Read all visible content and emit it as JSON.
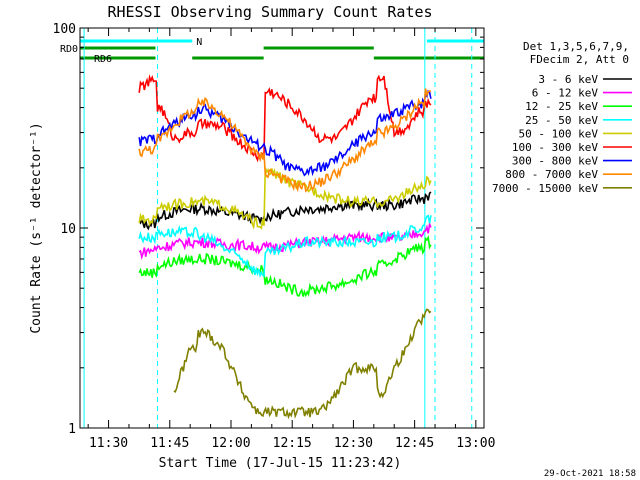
{
  "chart_data": {
    "type": "line",
    "title": "RHESSI Observing Summary Count Rates",
    "xlabel": "Start Time (17-Jul-15 11:23:42)",
    "ylabel": "Count Rate (s⁻¹ detector⁻¹)",
    "y_scale": "log",
    "ylim": [
      1,
      100
    ],
    "xlim_minutes_since_1130": [
      -7,
      92
    ],
    "x_ticks": [
      "11:30",
      "11:45",
      "12:00",
      "12:15",
      "12:30",
      "12:45",
      "13:00"
    ],
    "x_tick_minutes": [
      0,
      15,
      30,
      45,
      60,
      75,
      90
    ],
    "y_ticks": [
      "1",
      "10",
      "100"
    ],
    "y_tick_values": [
      1,
      10,
      100
    ],
    "grid": false,
    "legend_position": "top-right",
    "legend_header": [
      "Det 1,3,5,6,7,9,",
      "FDecim 2, Att 0"
    ],
    "timestamp": "29-Oct-2021 18:58",
    "flags": [
      {
        "label": "N",
        "color": "#00ffff",
        "segments": [
          [
            -7,
            20.5
          ],
          [
            78,
            92
          ]
        ]
      },
      {
        "label": "RD0",
        "color": "#009900",
        "segments": [
          [
            -7,
            11.5
          ],
          [
            38,
            65
          ]
        ]
      },
      {
        "label": "RD6",
        "color": "#009900",
        "segments": [
          [
            -7,
            11.5
          ],
          [
            20.5,
            38
          ],
          [
            65,
            92
          ]
        ]
      }
    ],
    "vlines": [
      {
        "x": -6,
        "color": "#00ffff",
        "dashed": false
      },
      {
        "x": 12,
        "color": "#00ffff",
        "dashed": true
      },
      {
        "x": 77.5,
        "color": "#00ffff",
        "dashed": false
      },
      {
        "x": 80,
        "color": "#00ffff",
        "dashed": true
      },
      {
        "x": 89,
        "color": "#00ffff",
        "dashed": true
      }
    ],
    "series": [
      {
        "name": "3 - 6 keV",
        "color": "#000000",
        "x": [
          7.5,
          11,
          13,
          16,
          20,
          24,
          28,
          33,
          36.5,
          40,
          44,
          48,
          52,
          56,
          60,
          64,
          67.5,
          70,
          73,
          76,
          79
        ],
        "y": [
          10.5,
          10.5,
          11.5,
          12,
          12.5,
          12.5,
          12,
          11.5,
          11,
          11.5,
          12,
          12.5,
          12.5,
          13,
          13,
          13,
          13,
          13,
          13.5,
          14,
          14.5
        ]
      },
      {
        "name": "6 - 12 keV",
        "color": "#ff00ff",
        "x": [
          7.5,
          11,
          13,
          16,
          20,
          24,
          28,
          33,
          36.5,
          40,
          44,
          48,
          52,
          56,
          60,
          64,
          67.5,
          70,
          73,
          76,
          79
        ],
        "y": [
          7.5,
          7.8,
          8,
          8.3,
          8.5,
          8.5,
          8.3,
          8.2,
          8,
          8,
          8.2,
          8.5,
          8.5,
          8.8,
          9,
          9,
          9,
          8.8,
          9,
          9.5,
          10
        ]
      },
      {
        "name": "12 - 25 keV",
        "color": "#00ff00",
        "x": [
          7.5,
          11,
          13,
          16,
          20,
          24,
          28,
          33,
          36.5,
          40,
          44,
          48,
          52,
          56,
          60,
          64,
          67.5,
          70,
          73,
          76,
          79
        ],
        "y": [
          6,
          6,
          6.5,
          6.8,
          7,
          7,
          6.8,
          6.5,
          6.2,
          5.5,
          5,
          4.8,
          5,
          5.2,
          5.5,
          6,
          6.5,
          7,
          7.5,
          8,
          8.5
        ]
      },
      {
        "name": "25 - 50 keV",
        "color": "#00ffff",
        "x": [
          7.5,
          11,
          13,
          16,
          20,
          24,
          28,
          33,
          36.5,
          40,
          44,
          48,
          52,
          56,
          60,
          64,
          67.5,
          70,
          73,
          76,
          79
        ],
        "y": [
          9,
          9,
          9.5,
          9.5,
          9.5,
          9,
          8,
          7,
          6,
          7.5,
          8,
          8.5,
          8.5,
          8.5,
          8.5,
          8.5,
          9,
          9,
          9.5,
          10,
          11
        ]
      },
      {
        "name": "50 - 100 keV",
        "color": "#cccc00",
        "x": [
          7.5,
          11,
          13,
          16,
          20,
          24,
          28,
          33,
          36.5,
          40,
          44,
          48,
          52,
          56,
          60,
          64,
          67.5,
          70,
          73,
          76,
          79
        ],
        "y": [
          11,
          11,
          13,
          13,
          13.5,
          13.5,
          13,
          11.5,
          10.5,
          19,
          17,
          16,
          15,
          14,
          13.5,
          13.5,
          13.5,
          14,
          15,
          16,
          17
        ]
      },
      {
        "name": "100 - 300 keV",
        "color": "#ff0000",
        "x": [
          7.5,
          11,
          13,
          16,
          20,
          24,
          28,
          33,
          36.5,
          40,
          44,
          48,
          52,
          56,
          60,
          64,
          67.5,
          70,
          73,
          76,
          79
        ],
        "y": [
          50,
          55,
          40,
          28,
          30,
          33,
          32,
          26,
          23,
          48,
          42,
          35,
          28,
          28,
          35,
          45,
          57,
          30,
          32,
          38,
          42
        ]
      },
      {
        "name": "300 - 800 keV",
        "color": "#0000ff",
        "x": [
          7.5,
          11,
          13,
          16,
          20,
          24,
          28,
          33,
          36.5,
          40,
          44,
          48,
          52,
          56,
          60,
          64,
          67.5,
          70,
          73,
          76,
          79
        ],
        "y": [
          27,
          28,
          30,
          33,
          37,
          39,
          35,
          29,
          26,
          24,
          20,
          19,
          20,
          22,
          26,
          30,
          35,
          37,
          40,
          42,
          47
        ]
      },
      {
        "name": "800 - 7000 keV",
        "color": "#ff8800",
        "x": [
          7.5,
          11,
          13,
          16,
          20,
          24,
          28,
          33,
          36.5,
          40,
          44,
          48,
          52,
          56,
          60,
          64,
          67.5,
          70,
          73,
          76,
          79
        ],
        "y": [
          24,
          25,
          28,
          33,
          38,
          42,
          37,
          28,
          23,
          19,
          17,
          16,
          17,
          19,
          22,
          26,
          30,
          32,
          36,
          42,
          47
        ]
      },
      {
        "name": "7000 - 15000 keV",
        "color": "#808000",
        "x": [
          16,
          20,
          24,
          28,
          33,
          36.5,
          52,
          56,
          60,
          64,
          67.5,
          70,
          73,
          76,
          79
        ],
        "y": [
          1.5,
          2.5,
          3,
          2.5,
          1.5,
          1.2,
          1.2,
          1.5,
          2,
          2,
          1.5,
          2,
          2.5,
          3.5,
          4
        ]
      }
    ]
  }
}
